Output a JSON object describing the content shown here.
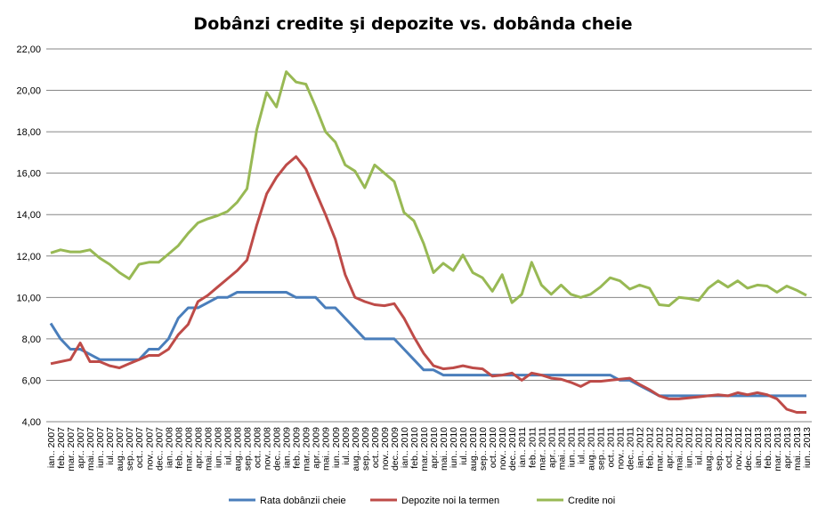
{
  "chart_data": {
    "type": "line",
    "title": "Dobânzi credite şi depozite vs. dobânda cheie",
    "xlabel": "",
    "ylabel": "",
    "ylim": [
      4,
      22
    ],
    "yticks": [
      "4,00",
      "6,00",
      "8,00",
      "10,00",
      "12,00",
      "14,00",
      "16,00",
      "18,00",
      "20,00",
      "22,00"
    ],
    "ytick_values": [
      4,
      6,
      8,
      10,
      12,
      14,
      16,
      18,
      20,
      22
    ],
    "grid": true,
    "legend_position": "bottom",
    "categories": [
      "ian.. 2007",
      "feb.. 2007",
      "mar.. 2007",
      "apr.. 2007",
      "mai.. 2007",
      "iun.. 2007",
      "iul.. 2007",
      "aug.. 2007",
      "sep.. 2007",
      "oct.. 2007",
      "nov.. 2007",
      "dec.. 2007",
      "ian.. 2008",
      "feb.. 2008",
      "mar.. 2008",
      "apr.. 2008",
      "mai.. 2008",
      "iun.. 2008",
      "iul.. 2008",
      "aug.. 2008",
      "sep.. 2008",
      "oct.. 2008",
      "nov.. 2008",
      "dec.. 2008",
      "ian.. 2009",
      "feb.. 2009",
      "mar.. 2009",
      "apr.. 2009",
      "mai.. 2009",
      "iun.. 2009",
      "iul.. 2009",
      "aug.. 2009",
      "sep.. 2009",
      "oct.. 2009",
      "nov.. 2009",
      "dec.. 2009",
      "ian.. 2010",
      "feb.. 2010",
      "mar.. 2010",
      "apr.. 2010",
      "mai.. 2010",
      "iun.. 2010",
      "iul.. 2010",
      "aug.. 2010",
      "sep.. 2010",
      "oct.. 2010",
      "nov.. 2010",
      "dec.. 2010",
      "ian.. 2011",
      "feb.. 2011",
      "mar.. 2011",
      "apr.. 2011",
      "mai.. 2011",
      "iun.. 2011",
      "iul.. 2011",
      "aug.. 2011",
      "sep.. 2011",
      "oct.. 2011",
      "nov.. 2011",
      "dec.. 2011",
      "ian.. 2012",
      "feb.. 2012",
      "mar.. 2012",
      "apr.. 2012",
      "mai.. 2012",
      "iun.. 2012",
      "iul.. 2012",
      "aug.. 2012",
      "sep.. 2012",
      "oct.. 2012",
      "nov.. 2012",
      "dec.. 2012",
      "ian.. 2013",
      "feb.. 2013",
      "mar.. 2013",
      "apr.. 2013",
      "mai.. 2013",
      "iun.. 2013"
    ],
    "series": [
      {
        "name": "Rata dobânzii cheie",
        "color": "#4a7ebb",
        "values": [
          8.75,
          8.0,
          7.5,
          7.5,
          7.25,
          7.0,
          7.0,
          7.0,
          7.0,
          7.0,
          7.5,
          7.5,
          8.0,
          9.0,
          9.5,
          9.5,
          9.75,
          10.0,
          10.0,
          10.25,
          10.25,
          10.25,
          10.25,
          10.25,
          10.25,
          10.0,
          10.0,
          10.0,
          9.5,
          9.5,
          9.0,
          8.5,
          8.0,
          8.0,
          8.0,
          8.0,
          7.5,
          7.0,
          6.5,
          6.5,
          6.25,
          6.25,
          6.25,
          6.25,
          6.25,
          6.25,
          6.25,
          6.25,
          6.25,
          6.25,
          6.25,
          6.25,
          6.25,
          6.25,
          6.25,
          6.25,
          6.25,
          6.25,
          6.0,
          6.0,
          5.75,
          5.5,
          5.25,
          5.25,
          5.25,
          5.25,
          5.25,
          5.25,
          5.25,
          5.25,
          5.25,
          5.25,
          5.25,
          5.25,
          5.25,
          5.25,
          5.25,
          5.25
        ]
      },
      {
        "name": "Depozite noi la termen",
        "color": "#be4b48",
        "values": [
          6.8,
          6.9,
          7.0,
          7.8,
          6.9,
          6.9,
          6.7,
          6.6,
          6.8,
          7.0,
          7.2,
          7.2,
          7.5,
          8.2,
          8.7,
          9.8,
          10.1,
          10.5,
          10.9,
          11.3,
          11.8,
          13.5,
          15.0,
          15.8,
          16.4,
          16.8,
          16.2,
          15.1,
          14.0,
          12.8,
          11.1,
          10.0,
          9.8,
          9.65,
          9.6,
          9.7,
          9.0,
          8.1,
          7.3,
          6.7,
          6.55,
          6.6,
          6.7,
          6.6,
          6.55,
          6.2,
          6.25,
          6.35,
          6.0,
          6.35,
          6.25,
          6.1,
          6.05,
          5.9,
          5.7,
          5.95,
          5.95,
          6.0,
          6.05,
          6.1,
          5.8,
          5.55,
          5.25,
          5.1,
          5.1,
          5.15,
          5.2,
          5.25,
          5.3,
          5.25,
          5.4,
          5.3,
          5.4,
          5.3,
          5.1,
          4.6,
          4.45,
          4.45
        ]
      },
      {
        "name": "Credite noi",
        "color": "#98b954",
        "values": [
          12.15,
          12.3,
          12.2,
          12.2,
          12.3,
          11.9,
          11.6,
          11.2,
          10.9,
          11.6,
          11.7,
          11.7,
          12.1,
          12.5,
          13.1,
          13.6,
          13.8,
          13.95,
          14.15,
          14.6,
          15.25,
          18.1,
          19.9,
          19.2,
          20.9,
          20.4,
          20.3,
          19.2,
          18.0,
          17.5,
          16.4,
          16.1,
          15.3,
          16.4,
          16.0,
          15.6,
          14.1,
          13.7,
          12.6,
          11.2,
          11.65,
          11.3,
          12.05,
          11.2,
          10.95,
          10.3,
          11.1,
          9.75,
          10.15,
          11.7,
          10.6,
          10.15,
          10.6,
          10.15,
          10.0,
          10.15,
          10.5,
          10.95,
          10.8,
          10.4,
          10.6,
          10.45,
          9.65,
          9.6,
          10.0,
          9.95,
          9.85,
          10.45,
          10.8,
          10.5,
          10.8,
          10.45,
          10.6,
          10.55,
          10.25,
          10.55,
          10.35,
          10.1
        ]
      }
    ]
  }
}
